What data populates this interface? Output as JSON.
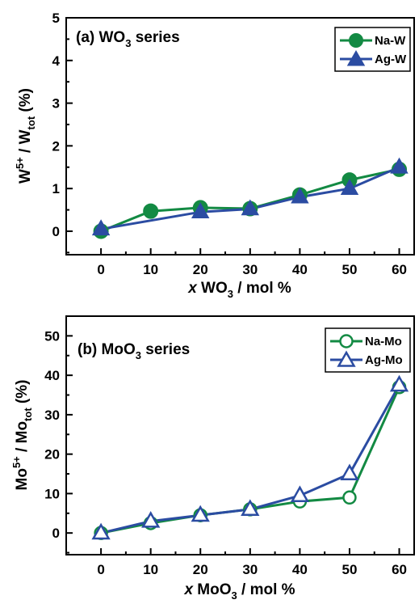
{
  "chart_data": [
    {
      "type": "line",
      "panel": "top",
      "title_pre": "(a) WO",
      "title_sub": "3",
      "title_post": " series",
      "xlabel_italic": "x",
      "xlabel_pre": " WO",
      "xlabel_sub": "3",
      "xlabel_post": " / mol %",
      "ylabel_base": "W",
      "ylabel_sup": "5+",
      "ylabel_mid": " / W",
      "ylabel_sub": "tot",
      "ylabel_post": " (%)",
      "xticks": [
        "0",
        "10",
        "20",
        "30",
        "40",
        "50",
        "60"
      ],
      "yticks": [
        "0",
        "1",
        "2",
        "3",
        "4",
        "5"
      ],
      "xlim": [
        -7,
        63
      ],
      "ylim": [
        -0.55,
        5
      ],
      "legend_position": "top-right",
      "series": [
        {
          "name": "Na-W",
          "color": "#138a43",
          "marker": "circle",
          "filled": true,
          "x": [
            0,
            10,
            20,
            30,
            40,
            50,
            60
          ],
          "y": [
            0.0,
            0.47,
            0.55,
            0.53,
            0.85,
            1.2,
            1.45
          ]
        },
        {
          "name": "Ag-W",
          "color": "#2b4ca2",
          "marker": "triangle",
          "filled": true,
          "x": [
            0,
            20,
            30,
            40,
            50,
            60
          ],
          "y": [
            0.05,
            0.45,
            0.52,
            0.8,
            1.0,
            1.5
          ]
        }
      ]
    },
    {
      "type": "line",
      "panel": "bottom",
      "title_pre": "(b) MoO",
      "title_sub": "3",
      "title_post": " series",
      "xlabel_italic": "x",
      "xlabel_pre": " MoO",
      "xlabel_sub": "3",
      "xlabel_post": " / mol %",
      "ylabel_base": "Mo",
      "ylabel_sup": "5+",
      "ylabel_mid": " / Mo",
      "ylabel_sub": "tot",
      "ylabel_post": " (%)",
      "xticks": [
        "0",
        "10",
        "20",
        "30",
        "40",
        "50",
        "60"
      ],
      "yticks": [
        "0",
        "10",
        "20",
        "30",
        "40",
        "50"
      ],
      "xlim": [
        -7,
        63
      ],
      "ylim": [
        -5.5,
        55
      ],
      "legend_position": "top-right",
      "series": [
        {
          "name": "Na-Mo",
          "color": "#138a43",
          "marker": "circle",
          "filled": false,
          "x": [
            0,
            10,
            20,
            30,
            40,
            50,
            60
          ],
          "y": [
            0.0,
            2.5,
            4.5,
            6.0,
            8.0,
            9.0,
            37.0
          ]
        },
        {
          "name": "Ag-Mo",
          "color": "#2b4ca2",
          "marker": "triangle",
          "filled": false,
          "x": [
            0,
            10,
            20,
            30,
            40,
            50,
            60
          ],
          "y": [
            0.0,
            3.0,
            4.5,
            6.0,
            9.5,
            15.0,
            37.5
          ]
        }
      ]
    }
  ]
}
